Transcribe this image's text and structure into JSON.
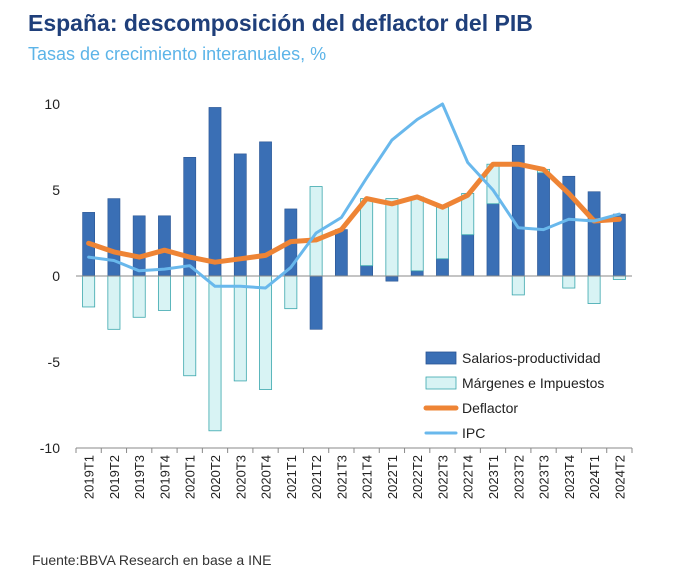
{
  "title": "España: descomposición del deflactor del PIB",
  "subtitle": "Tasas de crecimiento interanuales, %",
  "source": "Fuente:BBVA Research en base a INE",
  "colors": {
    "salarios": "#3a6fb5",
    "salarios_edge": "#2a5593",
    "margenes": "#d8f3f4",
    "margenes_edge": "#3aa7ad",
    "deflactor": "#ee8435",
    "ipc": "#69b8ec",
    "axis": "#888888",
    "tick_text": "#222222"
  },
  "chart_data": {
    "type": "bar",
    "title": "España: descomposición del deflactor del PIB",
    "subtitle": "Tasas de crecimiento interanuales, %",
    "xlabel": "",
    "ylabel": "",
    "ylim": [
      -10,
      10
    ],
    "yticks": [
      10,
      5,
      0,
      -5,
      -10
    ],
    "ytick_labels": [
      "10",
      "5",
      "0",
      "-5",
      "-10"
    ],
    "categories": [
      "2019T1",
      "2019T2",
      "2019T3",
      "2019T4",
      "2020T1",
      "2020T2",
      "2020T3",
      "2020T4",
      "2021T1",
      "2021T2",
      "2021T3",
      "2021T4",
      "2022T1",
      "2022T2",
      "2022T3",
      "2022T4",
      "2023T1",
      "2023T2",
      "2023T3",
      "2023T4",
      "2024T1",
      "2024T2"
    ],
    "legend_position": "bottom-right",
    "series": [
      {
        "name": "Salarios-productividad",
        "kind": "bar",
        "values": [
          3.7,
          4.5,
          3.5,
          3.5,
          6.9,
          9.8,
          7.1,
          7.8,
          3.9,
          -3.1,
          2.7,
          0.6,
          -0.3,
          0.3,
          1.0,
          2.4,
          4.2,
          7.6,
          6.0,
          5.8,
          4.9,
          3.6
        ]
      },
      {
        "name": "Márgenes e Impuestos",
        "kind": "bar",
        "values": [
          -1.8,
          -3.1,
          -2.4,
          -2.0,
          -5.8,
          -9.0,
          -6.1,
          -6.6,
          -1.9,
          5.2,
          0.0,
          3.9,
          4.5,
          4.3,
          3.0,
          2.4,
          2.3,
          -1.1,
          0.2,
          -0.7,
          -1.6,
          -0.2
        ]
      },
      {
        "name": "Deflactor",
        "kind": "line",
        "values": [
          1.9,
          1.4,
          1.1,
          1.5,
          1.1,
          0.8,
          1.0,
          1.2,
          2.0,
          2.1,
          2.7,
          4.5,
          4.2,
          4.6,
          4.0,
          4.7,
          6.5,
          6.5,
          6.2,
          4.8,
          3.2,
          3.3
        ]
      },
      {
        "name": "IPC",
        "kind": "line",
        "values": [
          1.1,
          0.9,
          0.3,
          0.4,
          0.6,
          -0.6,
          -0.6,
          -0.7,
          0.5,
          2.5,
          3.4,
          5.7,
          7.9,
          9.1,
          10.0,
          6.6,
          5.0,
          2.8,
          2.7,
          3.3,
          3.2,
          3.6
        ]
      }
    ]
  }
}
